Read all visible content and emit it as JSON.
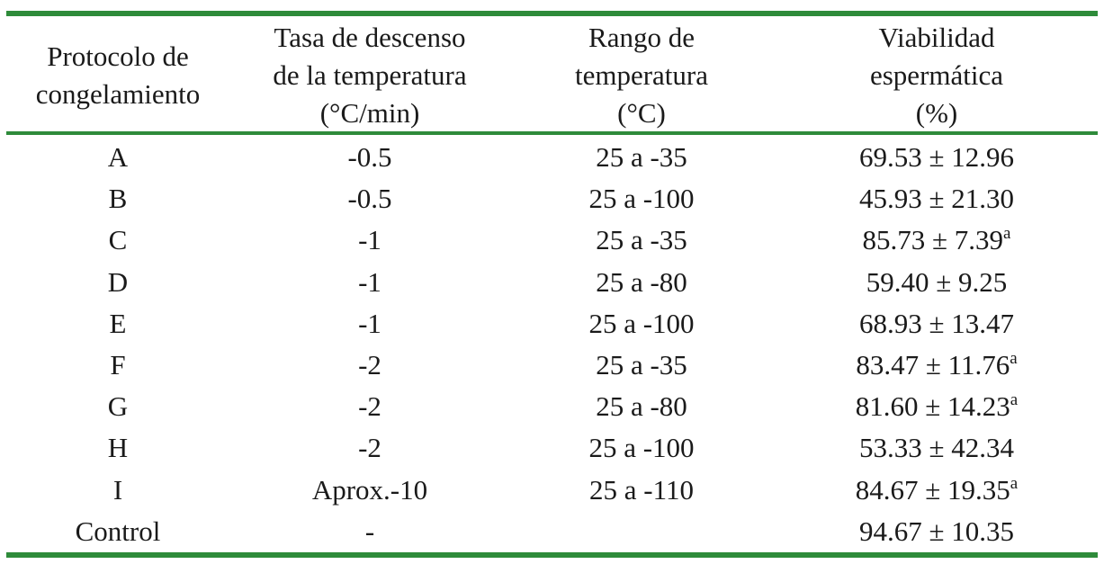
{
  "table": {
    "headers": [
      [
        "Protocolo de",
        "congelamiento"
      ],
      [
        "Tasa de descenso",
        "de la temperatura",
        "(°C/min)"
      ],
      [
        "Rango de",
        "temperatura",
        "(°C)"
      ],
      [
        "Viabilidad",
        "espermática",
        "(%)"
      ]
    ],
    "rows": [
      {
        "protocol": "A",
        "rate": "-0.5",
        "range": "25 a -35",
        "viability": "69.53 ± 12.96",
        "sup": ""
      },
      {
        "protocol": "B",
        "rate": "-0.5",
        "range": "25 a -100",
        "viability": "45.93 ± 21.30",
        "sup": ""
      },
      {
        "protocol": "C",
        "rate": "-1",
        "range": "25 a -35",
        "viability": "85.73 ± 7.39",
        "sup": "a"
      },
      {
        "protocol": "D",
        "rate": "-1",
        "range": "25 a -80",
        "viability": "59.40 ± 9.25",
        "sup": ""
      },
      {
        "protocol": "E",
        "rate": "-1",
        "range": "25 a -100",
        "viability": "68.93 ± 13.47",
        "sup": ""
      },
      {
        "protocol": "F",
        "rate": "-2",
        "range": "25 a -35",
        "viability": "83.47 ± 11.76",
        "sup": "a"
      },
      {
        "protocol": "G",
        "rate": "-2",
        "range": "25 a -80",
        "viability": "81.60 ± 14.23",
        "sup": "a"
      },
      {
        "protocol": "H",
        "rate": "-2",
        "range": "25 a -100",
        "viability": "53.33 ± 42.34",
        "sup": ""
      },
      {
        "protocol": "I",
        "rate": "Aprox.-10",
        "range": "25 a -110",
        "viability": "84.67 ± 19.35",
        "sup": "a"
      },
      {
        "protocol": "Control",
        "rate": "-",
        "range": "",
        "viability": "94.67 ± 10.35",
        "sup": ""
      }
    ],
    "rule_color": "#2e8b3a"
  }
}
